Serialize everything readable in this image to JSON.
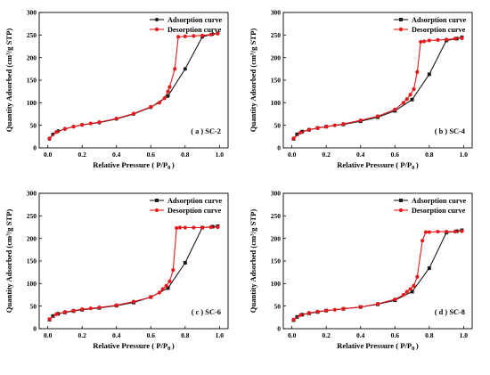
{
  "colors": {
    "adsorption": "#1a1a1a",
    "desorption": "#e8171a"
  },
  "chart_data": [
    {
      "type": "line",
      "panel_label": "( a ) SC-2",
      "xlabel": "Relative Pressure ( P/P",
      "xlabel_sub": "0",
      "xlabel_end": ")",
      "ylabel": "Quantity Adsorbed (cm³/g STP)",
      "xlim": [
        -0.05,
        1.05
      ],
      "ylim": [
        0,
        300
      ],
      "xticks": [
        "0.0",
        "0.2",
        "0.4",
        "0.6",
        "0.8",
        "1.0"
      ],
      "xtick_values": [
        0,
        0.2,
        0.4,
        0.6,
        0.8,
        1.0
      ],
      "yticks": [
        "0",
        "50",
        "100",
        "150",
        "200",
        "250",
        "300"
      ],
      "ytick_values": [
        0,
        50,
        100,
        150,
        200,
        250,
        300
      ],
      "legend": [
        "Adsorption curve",
        "Desorption curve"
      ],
      "legend_position": "top-right",
      "series": [
        {
          "name": "Adsorption curve",
          "marker": "circle",
          "x": [
            0.01,
            0.03,
            0.06,
            0.1,
            0.15,
            0.2,
            0.3,
            0.4,
            0.5,
            0.6,
            0.7,
            0.8,
            0.9,
            0.96,
            0.99
          ],
          "y": [
            20,
            30,
            37,
            42,
            47,
            51,
            56,
            64,
            75,
            90,
            115,
            175,
            246,
            252,
            254
          ]
        },
        {
          "name": "Desorption curve",
          "marker": "circle",
          "x": [
            0.99,
            0.95,
            0.9,
            0.85,
            0.8,
            0.76,
            0.74,
            0.71,
            0.7,
            0.68,
            0.65,
            0.6,
            0.5,
            0.4,
            0.3,
            0.25,
            0.2,
            0.15,
            0.1,
            0.05,
            0.01
          ],
          "y": [
            253,
            251,
            249,
            248,
            247,
            246,
            175,
            135,
            125,
            110,
            100,
            91,
            76,
            65,
            57,
            54,
            51,
            47,
            42,
            35,
            21
          ]
        }
      ]
    },
    {
      "type": "line",
      "panel_label": "( b ) SC-4",
      "xlabel": "Relative Pressure ( P/P",
      "xlabel_sub": "0",
      "xlabel_end": ")",
      "ylabel": "Quantity Adsorbed (cm³/g STP)",
      "xlim": [
        -0.05,
        1.05
      ],
      "ylim": [
        0,
        300
      ],
      "xticks": [
        "0.0",
        "0.2",
        "0.4",
        "0.6",
        "0.8",
        "1.0"
      ],
      "xtick_values": [
        0,
        0.2,
        0.4,
        0.6,
        0.8,
        1.0
      ],
      "yticks": [
        "0",
        "50",
        "100",
        "150",
        "200",
        "250",
        "300"
      ],
      "ytick_values": [
        0,
        50,
        100,
        150,
        200,
        250,
        300
      ],
      "legend": [
        "Adsorption curve",
        "Desorption curve"
      ],
      "legend_position": "top-right",
      "series": [
        {
          "name": "Adsorption curve",
          "marker": "square",
          "x": [
            0.01,
            0.03,
            0.06,
            0.1,
            0.15,
            0.2,
            0.3,
            0.4,
            0.5,
            0.6,
            0.7,
            0.8,
            0.9,
            0.96,
            0.99
          ],
          "y": [
            20,
            30,
            36,
            40,
            44,
            47,
            52,
            59,
            68,
            82,
            107,
            163,
            238,
            242,
            245
          ]
        },
        {
          "name": "Desorption curve",
          "marker": "circle",
          "x": [
            0.99,
            0.95,
            0.9,
            0.85,
            0.8,
            0.77,
            0.75,
            0.73,
            0.71,
            0.69,
            0.67,
            0.65,
            0.6,
            0.5,
            0.4,
            0.3,
            0.25,
            0.2,
            0.15,
            0.1,
            0.05,
            0.01
          ],
          "y": [
            243,
            242,
            240,
            239,
            238,
            236,
            235,
            168,
            130,
            118,
            108,
            100,
            85,
            70,
            61,
            53,
            50,
            47,
            44,
            40,
            34,
            21
          ]
        }
      ]
    },
    {
      "type": "line",
      "panel_label": "( c ) SC-6",
      "xlabel": "Relative Pressure ( P/P",
      "xlabel_sub": "0",
      "xlabel_end": ")",
      "ylabel": "Quantity Adsorbed (cm³/g STP)",
      "xlim": [
        -0.05,
        1.05
      ],
      "ylim": [
        0,
        300
      ],
      "xticks": [
        "0.0",
        "0.2",
        "0.4",
        "0.6",
        "0.8",
        "1.0"
      ],
      "xtick_values": [
        0,
        0.2,
        0.4,
        0.6,
        0.8,
        1.0
      ],
      "yticks": [
        "0",
        "50",
        "100",
        "150",
        "200",
        "250",
        "300"
      ],
      "ytick_values": [
        0,
        50,
        100,
        150,
        200,
        250,
        300
      ],
      "legend": [
        "Adsorption curve",
        "Desorption curve"
      ],
      "legend_position": "top-right",
      "series": [
        {
          "name": "Adsorption curve",
          "marker": "square",
          "x": [
            0.01,
            0.03,
            0.06,
            0.1,
            0.15,
            0.2,
            0.3,
            0.4,
            0.5,
            0.6,
            0.7,
            0.8,
            0.9,
            0.96,
            0.99
          ],
          "y": [
            20,
            28,
            33,
            36,
            39,
            42,
            46,
            51,
            58,
            70,
            90,
            146,
            224,
            226,
            227
          ]
        },
        {
          "name": "Desorption curve",
          "marker": "circle",
          "x": [
            0.99,
            0.95,
            0.9,
            0.85,
            0.8,
            0.77,
            0.75,
            0.73,
            0.71,
            0.69,
            0.67,
            0.65,
            0.6,
            0.5,
            0.4,
            0.3,
            0.25,
            0.2,
            0.15,
            0.1,
            0.05,
            0.01
          ],
          "y": [
            225,
            225,
            224,
            224,
            224,
            224,
            223,
            130,
            105,
            95,
            88,
            80,
            70,
            60,
            52,
            47,
            45,
            43,
            40,
            37,
            32,
            21
          ]
        }
      ]
    },
    {
      "type": "line",
      "panel_label": "( d ) SC-8",
      "xlabel": "Relative Pressure ( P/P",
      "xlabel_sub": "0",
      "xlabel_end": ")",
      "ylabel": "Quantity Adsorbed (cm³/g STP)",
      "xlim": [
        -0.05,
        1.05
      ],
      "ylim": [
        0,
        300
      ],
      "xticks": [
        "0.0",
        "0.2",
        "0.4",
        "0.6",
        "0.8",
        "1.0"
      ],
      "xtick_values": [
        0,
        0.2,
        0.4,
        0.6,
        0.8,
        1.0
      ],
      "yticks": [
        "0",
        "50",
        "100",
        "150",
        "200",
        "250",
        "300"
      ],
      "ytick_values": [
        0,
        50,
        100,
        150,
        200,
        250,
        300
      ],
      "legend": [
        "Adsorption curve",
        "Desorption curve"
      ],
      "legend_position": "top-right",
      "series": [
        {
          "name": "Adsorption curve",
          "marker": "square",
          "x": [
            0.01,
            0.03,
            0.06,
            0.1,
            0.15,
            0.2,
            0.3,
            0.4,
            0.5,
            0.6,
            0.7,
            0.8,
            0.9,
            0.96,
            0.99
          ],
          "y": [
            19,
            26,
            31,
            34,
            37,
            40,
            44,
            48,
            54,
            63,
            82,
            134,
            213,
            216,
            218
          ]
        },
        {
          "name": "Desorption curve",
          "marker": "circle",
          "x": [
            0.99,
            0.95,
            0.9,
            0.85,
            0.8,
            0.78,
            0.76,
            0.73,
            0.71,
            0.69,
            0.67,
            0.65,
            0.6,
            0.5,
            0.4,
            0.3,
            0.25,
            0.2,
            0.15,
            0.1,
            0.05,
            0.01
          ],
          "y": [
            216,
            215,
            215,
            215,
            214,
            214,
            195,
            115,
            95,
            88,
            82,
            75,
            65,
            55,
            48,
            44,
            42,
            40,
            38,
            35,
            30,
            20
          ]
        }
      ]
    }
  ]
}
